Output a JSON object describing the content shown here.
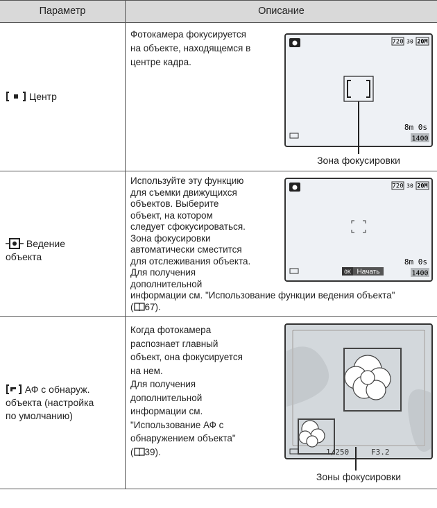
{
  "table": {
    "header": [
      "Параметр",
      "Описание"
    ],
    "rows": [
      {
        "parameter": [
          "Центр"
        ],
        "description": [
          "Фотокамера фокусируется",
          "на объекте, находящемся в",
          "центре кадра."
        ],
        "screen": [
          "720",
          "30",
          "20M",
          "8m 0s",
          "1400"
        ],
        "caption": "Зона фокусировки"
      },
      {
        "parameter": [
          "Ведение",
          "объекта"
        ],
        "description": [
          "Используйте эту функцию",
          "для съемки движущихся",
          "объектов. Выберите",
          "объект, на котором",
          "следует сфокусироваться.",
          "Зона фокусировки",
          "автоматически сместится",
          "для отслеживания объекта.",
          "Для получения",
          "дополнительной",
          "информации см. \"Использование функции ведения объекта\""
        ],
        "reference": [
          "(",
          "67)."
        ],
        "screen": [
          "720",
          "30",
          "20M",
          "8m 0s",
          "OK",
          "Начать",
          "1400"
        ]
      },
      {
        "parameter": [
          "АФ с обнаруж.",
          "объекта (настройка",
          "по умолчанию)"
        ],
        "description": [
          "Когда фотокамера",
          "распознает главный",
          "объект, она фокусируется",
          "на нем.",
          "Для получения",
          "дополнительной",
          "информации см.",
          "\"Использование АФ с",
          "обнаружением объекта\""
        ],
        "reference": [
          "(",
          "39)."
        ],
        "screen": [
          "1/250",
          "F3.2"
        ],
        "caption": "Зоны фокусировки"
      }
    ]
  }
}
